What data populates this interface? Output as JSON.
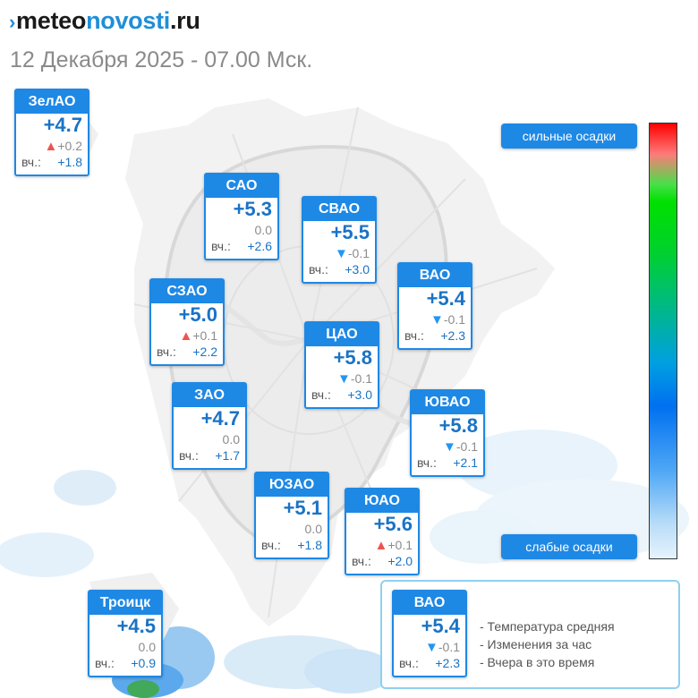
{
  "header": {
    "logo_prefix": "meteo",
    "logo_main": "novosti",
    "logo_suffix": ".ru",
    "datetime": "12 Декабря 2025 - 07.00 Мск."
  },
  "colors": {
    "accent": "#1e88e5",
    "temp_text": "#1a73c5",
    "rise": "#ef5350",
    "fall": "#2196f3"
  },
  "yesterday_label": "вч.:",
  "districts": [
    {
      "id": "zelao",
      "name": "ЗелАО",
      "temp": "+4.7",
      "trend": "up",
      "delta": "+0.2",
      "yesterday": "+1.8"
    },
    {
      "id": "sao",
      "name": "САО",
      "temp": "+5.3",
      "trend": "none",
      "delta": "0.0",
      "yesterday": "+2.6"
    },
    {
      "id": "svao",
      "name": "СВАО",
      "temp": "+5.5",
      "trend": "down",
      "delta": "-0.1",
      "yesterday": "+3.0"
    },
    {
      "id": "vao",
      "name": "ВАО",
      "temp": "+5.4",
      "trend": "down",
      "delta": "-0.1",
      "yesterday": "+2.3"
    },
    {
      "id": "szao",
      "name": "СЗАО",
      "temp": "+5.0",
      "trend": "up",
      "delta": "+0.1",
      "yesterday": "+2.2"
    },
    {
      "id": "cao",
      "name": "ЦАО",
      "temp": "+5.8",
      "trend": "down",
      "delta": "-0.1",
      "yesterday": "+3.0"
    },
    {
      "id": "zao",
      "name": "ЗАО",
      "temp": "+4.7",
      "trend": "none",
      "delta": "0.0",
      "yesterday": "+1.7"
    },
    {
      "id": "uvao",
      "name": "ЮВАО",
      "temp": "+5.8",
      "trend": "down",
      "delta": "-0.1",
      "yesterday": "+2.1"
    },
    {
      "id": "uzao",
      "name": "ЮЗАО",
      "temp": "+5.1",
      "trend": "none",
      "delta": "0.0",
      "yesterday": "+1.8"
    },
    {
      "id": "uao",
      "name": "ЮАО",
      "temp": "+5.6",
      "trend": "up",
      "delta": "+0.1",
      "yesterday": "+2.0"
    },
    {
      "id": "troitsk",
      "name": "Троицк",
      "temp": "+4.5",
      "trend": "none",
      "delta": "0.0",
      "yesterday": "+0.9"
    }
  ],
  "precip_scale": {
    "high_label": "сильные осадки",
    "low_label": "слабые осадки"
  },
  "legend": {
    "sample": {
      "name": "ВАО",
      "temp": "+5.4",
      "trend": "down",
      "delta": "-0.1",
      "yesterday": "+2.3"
    },
    "line_avg": "- Температура средняя",
    "line_change": "- Изменения за час",
    "line_yesterday": "- Вчера в это время"
  }
}
